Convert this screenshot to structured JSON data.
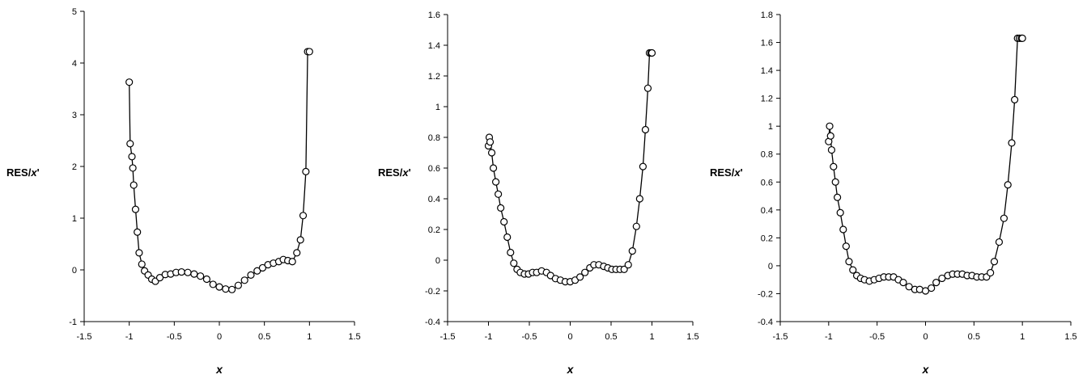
{
  "chart_data": [
    {
      "type": "scatter",
      "xlabel": "x",
      "ylabel_prefix": "RES/",
      "ylabel_italic": "x",
      "ylabel_suffix": "'",
      "xlim": [
        -1.5,
        1.5
      ],
      "ylim": [
        -1,
        5
      ],
      "xticks": [
        -1.5,
        -1,
        -0.5,
        0,
        0.5,
        1,
        1.5
      ],
      "yticks": [
        -1,
        0,
        1,
        2,
        3,
        4,
        5
      ],
      "ytick_labels": [
        "-1",
        "0",
        "1",
        "2",
        "3",
        "4",
        "5"
      ],
      "xtick_labels": [
        "-1.5",
        "-1",
        "-0.5",
        "0",
        "0.5",
        "1",
        "1.5"
      ],
      "series": [
        {
          "x": [
            -1.0,
            -0.99,
            -0.97,
            -0.96,
            -0.95,
            -0.93,
            -0.91,
            -0.89,
            -0.86,
            -0.83,
            -0.79,
            -0.75,
            -0.71,
            -0.66,
            -0.6,
            -0.54,
            -0.48,
            -0.42,
            -0.35,
            -0.28,
            -0.21,
            -0.14,
            -0.07,
            0.0,
            0.07,
            0.14,
            0.21,
            0.28,
            0.35,
            0.42,
            0.48,
            0.54,
            0.6,
            0.66,
            0.71,
            0.76,
            0.81,
            0.86,
            0.9,
            0.93,
            0.96,
            0.98,
            1.0
          ],
          "y": [
            3.63,
            2.44,
            2.19,
            1.97,
            1.64,
            1.17,
            0.73,
            0.33,
            0.11,
            -0.02,
            -0.1,
            -0.18,
            -0.22,
            -0.15,
            -0.09,
            -0.08,
            -0.05,
            -0.04,
            -0.05,
            -0.08,
            -0.12,
            -0.18,
            -0.28,
            -0.33,
            -0.37,
            -0.38,
            -0.3,
            -0.2,
            -0.1,
            -0.02,
            0.04,
            0.1,
            0.13,
            0.16,
            0.2,
            0.18,
            0.16,
            0.33,
            0.58,
            1.05,
            1.9,
            4.22,
            4.22
          ]
        }
      ]
    },
    {
      "type": "scatter",
      "xlabel": "x",
      "ylabel_prefix": "RES/",
      "ylabel_italic": "x",
      "ylabel_suffix": "'",
      "xlim": [
        -1.5,
        1.5
      ],
      "ylim": [
        -0.4,
        1.6
      ],
      "xticks": [
        -1.5,
        -1,
        -0.5,
        0,
        0.5,
        1,
        1.5
      ],
      "yticks": [
        -0.4,
        -0.2,
        0,
        0.2,
        0.4,
        0.6,
        0.8,
        1.0,
        1.2,
        1.4,
        1.6
      ],
      "ytick_labels": [
        "-0.4",
        "-0.2",
        "0",
        "0.2",
        "0.4",
        "0.6",
        "0.8",
        "1",
        "1.2",
        "1.4",
        "1.6"
      ],
      "xtick_labels": [
        "-1.5",
        "-1",
        "-0.5",
        "0",
        "0.5",
        "1",
        "1.5"
      ],
      "series": [
        {
          "x": [
            -1.0,
            -0.99,
            -0.98,
            -0.96,
            -0.94,
            -0.91,
            -0.88,
            -0.85,
            -0.81,
            -0.77,
            -0.73,
            -0.69,
            -0.65,
            -0.61,
            -0.56,
            -0.51,
            -0.46,
            -0.41,
            -0.35,
            -0.29,
            -0.24,
            -0.18,
            -0.12,
            -0.06,
            0.0,
            0.06,
            0.12,
            0.18,
            0.24,
            0.29,
            0.35,
            0.41,
            0.46,
            0.51,
            0.56,
            0.61,
            0.66,
            0.71,
            0.76,
            0.81,
            0.85,
            0.89,
            0.92,
            0.95,
            0.97,
            0.99,
            1.0
          ],
          "y": [
            0.745,
            0.8,
            0.77,
            0.7,
            0.6,
            0.51,
            0.43,
            0.34,
            0.25,
            0.15,
            0.05,
            -0.02,
            -0.06,
            -0.08,
            -0.09,
            -0.09,
            -0.08,
            -0.08,
            -0.07,
            -0.08,
            -0.1,
            -0.12,
            -0.13,
            -0.14,
            -0.14,
            -0.13,
            -0.11,
            -0.08,
            -0.05,
            -0.03,
            -0.03,
            -0.04,
            -0.05,
            -0.06,
            -0.06,
            -0.06,
            -0.06,
            -0.03,
            0.06,
            0.22,
            0.4,
            0.61,
            0.85,
            1.12,
            1.35,
            1.35,
            1.35
          ]
        }
      ]
    },
    {
      "type": "scatter",
      "xlabel": "x",
      "ylabel_prefix": "RES/",
      "ylabel_italic": "x",
      "ylabel_suffix": "'",
      "xlim": [
        -1.5,
        1.5
      ],
      "ylim": [
        -0.4,
        1.8
      ],
      "xticks": [
        -1.5,
        -1,
        -0.5,
        0,
        0.5,
        1,
        1.5
      ],
      "yticks": [
        -0.4,
        -0.2,
        0,
        0.2,
        0.4,
        0.6,
        0.8,
        1.0,
        1.2,
        1.4,
        1.6,
        1.8
      ],
      "ytick_labels": [
        "-0.4",
        "-0.2",
        "0",
        "0.2",
        "0.4",
        "0.6",
        "0.8",
        "1",
        "1.2",
        "1.4",
        "1.6",
        "1.8"
      ],
      "xtick_labels": [
        "-1.5",
        "-1",
        "-0.5",
        "0",
        "0.5",
        "1",
        "1.5"
      ],
      "series": [
        {
          "x": [
            -1.0,
            -0.99,
            -0.98,
            -0.97,
            -0.95,
            -0.93,
            -0.91,
            -0.88,
            -0.85,
            -0.82,
            -0.79,
            -0.75,
            -0.71,
            -0.67,
            -0.63,
            -0.58,
            -0.53,
            -0.48,
            -0.43,
            -0.38,
            -0.33,
            -0.28,
            -0.23,
            -0.17,
            -0.11,
            -0.06,
            0.0,
            0.06,
            0.11,
            0.17,
            0.23,
            0.28,
            0.33,
            0.38,
            0.43,
            0.48,
            0.53,
            0.58,
            0.63,
            0.67,
            0.71,
            0.76,
            0.81,
            0.85,
            0.89,
            0.92,
            0.95,
            0.97,
            0.99,
            1.0
          ],
          "y": [
            0.89,
            1.0,
            0.93,
            0.83,
            0.71,
            0.6,
            0.49,
            0.38,
            0.26,
            0.14,
            0.03,
            -0.03,
            -0.07,
            -0.09,
            -0.1,
            -0.11,
            -0.1,
            -0.09,
            -0.08,
            -0.08,
            -0.08,
            -0.1,
            -0.12,
            -0.15,
            -0.17,
            -0.17,
            -0.18,
            -0.16,
            -0.12,
            -0.09,
            -0.07,
            -0.06,
            -0.06,
            -0.06,
            -0.07,
            -0.07,
            -0.08,
            -0.08,
            -0.08,
            -0.05,
            0.03,
            0.17,
            0.34,
            0.58,
            0.88,
            1.19,
            1.63,
            1.63,
            1.63,
            1.63
          ]
        }
      ]
    }
  ]
}
